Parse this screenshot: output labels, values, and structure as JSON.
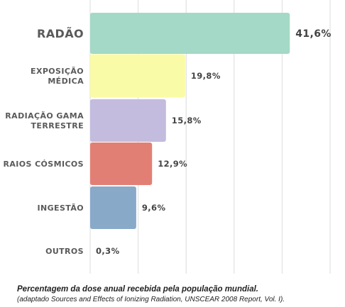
{
  "chart_data": {
    "type": "bar",
    "orientation": "horizontal",
    "categories": [
      [
        "RADÃO"
      ],
      [
        "EXPOSIÇÃO",
        "MÉDICA"
      ],
      [
        "RADIAÇÃO GAMA",
        "TERRESTRE"
      ],
      [
        "RAIOS CÓSMICOS"
      ],
      [
        "INGESTÃO"
      ],
      [
        "OUTROS"
      ]
    ],
    "values": [
      41.6,
      19.8,
      15.8,
      12.9,
      9.6,
      0.3
    ],
    "value_labels": [
      "41,6%",
      "19,8%",
      "15,8%",
      "12,9%",
      "9,6%",
      "0,3%"
    ],
    "colors": [
      "#a3d9c6",
      "#fafba6",
      "#c3bcde",
      "#e27f74",
      "#89a9c9",
      "#cccccc"
    ],
    "xlim": [
      0,
      50
    ],
    "grid": true,
    "title": "",
    "xlabel": "",
    "ylabel": ""
  },
  "caption": {
    "title": "Percentagem da dose anual recebida pela população mundial.",
    "source": "(adaptado Sources and Effects of Ionizing Radiation, UNSCEAR 2008 Report, Vol. I)."
  }
}
